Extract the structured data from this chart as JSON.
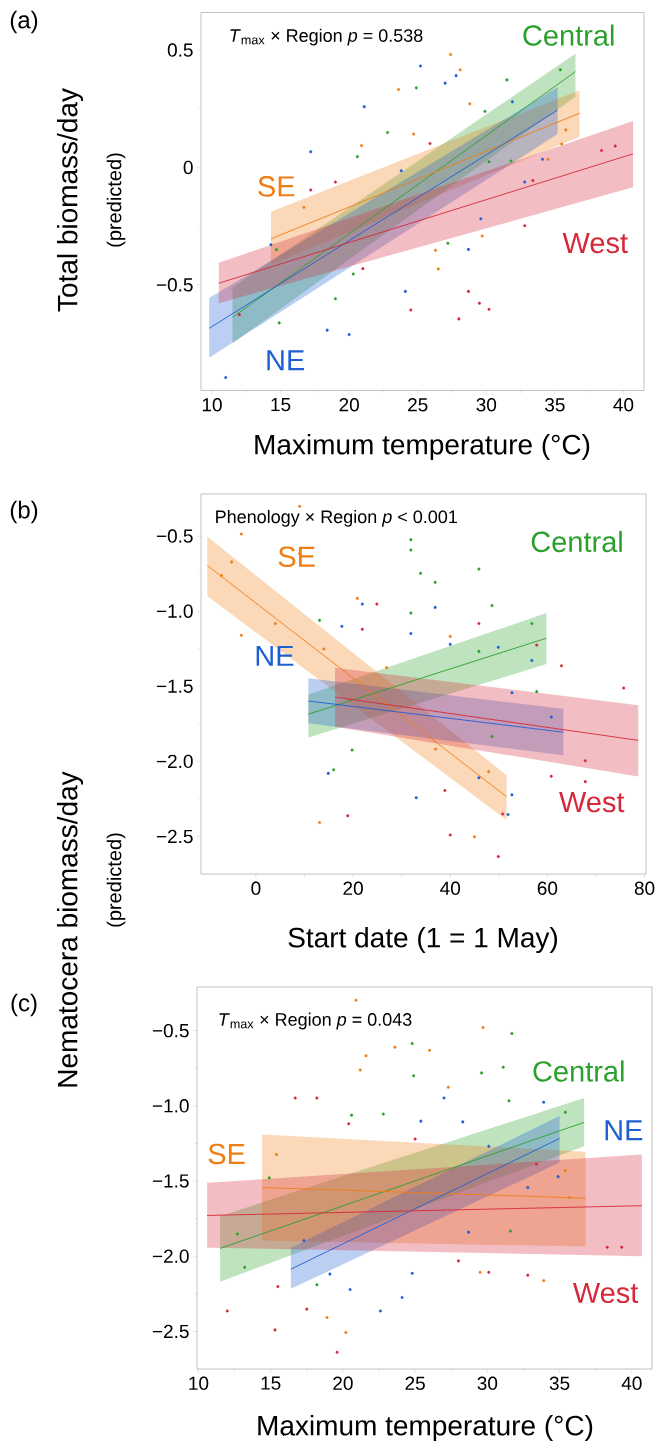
{
  "chart_data": [
    {
      "type": "scatter",
      "title": "(a)",
      "xlabel": "Maximum temperature (°C)",
      "ylabel": "Total biomass/day",
      "annotations": [
        "*T*$_{max}$ × Region *p* = 0.538",
        "(predicted)"
      ],
      "xlim": [
        9.2,
        41.5
      ],
      "ylim": [
        -0.95,
        0.66
      ],
      "xticks": [
        10,
        15,
        20,
        25,
        30,
        35,
        40
      ],
      "yticks": [
        {
          "value": -0.5,
          "label": "−0.5"
        },
        0,
        0.5
      ],
      "series": [
        {
          "type": "line",
          "name": "Central",
          "color": "#2ca02c",
          "x": [
            11.5,
            36.5
          ],
          "values": [
            -0.638,
            0.408
          ],
          "lower": [
            -0.749,
            0.301
          ],
          "upper": [
            -0.51,
            0.484
          ]
        },
        {
          "type": "line",
          "name": "SE",
          "color": "#f07d14",
          "x": [
            14.3,
            36.8
          ],
          "values": [
            -0.304,
            0.231
          ],
          "lower": [
            -0.414,
            0.131
          ],
          "upper": [
            -0.189,
            0.329
          ]
        },
        {
          "type": "line",
          "name": "NE",
          "color": "#1f5fd4",
          "x": [
            9.8,
            35.2
          ],
          "values": [
            -0.685,
            0.244
          ],
          "lower": [
            -0.81,
            0.142
          ],
          "upper": [
            -0.556,
            0.342
          ]
        },
        {
          "type": "line",
          "name": "West",
          "color": "#d62839",
          "x": [
            10.5,
            40.7
          ],
          "values": [
            -0.493,
            0.058
          ],
          "lower": [
            -0.578,
            -0.084
          ],
          "upper": [
            -0.406,
            0.198
          ]
        },
        {
          "color": "#2ca02c",
          "x": [
            35.4,
            14.9,
            24.9,
            20.6,
            31.5,
            29.9,
            19.0,
            20.3,
            27.2,
            31.8,
            30.2,
            22.8,
            14.7
          ],
          "values": [
            0.416,
            -0.662,
            0.339,
            0.046,
            0.373,
            0.239,
            -0.559,
            -0.454,
            -0.323,
            0.027,
            0.024,
            0.149,
            -0.35
          ]
        },
        {
          "color": "#f07d14",
          "x": [
            27.4,
            28.1,
            23.6,
            20.9,
            26.5,
            29.7,
            35.8,
            35.5,
            34.5,
            24.7,
            26.3,
            28.8,
            16.7
          ],
          "values": [
            0.481,
            0.416,
            0.332,
            0.093,
            -0.432,
            -0.292,
            0.16,
            0.1,
            0.035,
            0.142,
            -0.353,
            0.271,
            -0.17
          ]
        },
        {
          "color": "#1f5fd4",
          "x": [
            11.0,
            17.2,
            21.1,
            20.0,
            25.2,
            27.0,
            27.8,
            31.9,
            34.1,
            24.1,
            28.7,
            14.3,
            29.6,
            18.4,
            23.8,
            32.8
          ],
          "values": [
            -0.895,
            0.067,
            0.259,
            -0.712,
            0.432,
            0.359,
            0.391,
            0.28,
            0.035,
            -0.528,
            -0.349,
            -0.329,
            -0.219,
            -0.693,
            -0.014,
            -0.062
          ]
        },
        {
          "color": "#d62839",
          "x": [
            39.4,
            38.4,
            32.8,
            28.0,
            30.2,
            29.5,
            24.5,
            21.0,
            17.2,
            19.0,
            25.9,
            33.4,
            12.0,
            28.7
          ],
          "values": [
            0.091,
            0.072,
            -0.248,
            -0.645,
            -0.604,
            -0.578,
            -0.607,
            -0.431,
            -0.096,
            -0.062,
            0.102,
            -0.056,
            -0.627,
            -0.528
          ]
        }
      ]
    },
    {
      "type": "scatter",
      "title": "(b)",
      "xlabel": "Start date (1 = 1 May)",
      "ylabel": "Nematocera biomass/day",
      "annotations": [
        "Phenology × Region *p* < 0.001",
        "(predicted)"
      ],
      "xlim": [
        -11.3,
        80.3
      ],
      "ylim": [
        -2.75,
        -0.22
      ],
      "xticks": [
        0,
        20,
        40,
        60,
        80
      ],
      "yticks": [
        {
          "value": -2.5,
          "label": "−2.5"
        },
        {
          "value": -2,
          "label": "−2.0"
        },
        {
          "value": -1.5,
          "label": "−1.5"
        },
        {
          "value": -1,
          "label": "−1.0"
        },
        {
          "value": -0.5,
          "label": "−0.5"
        }
      ],
      "series": [
        {
          "type": "line",
          "name": "Central",
          "color": "#2ca02c",
          "x": [
            10.8,
            59.8
          ],
          "values": [
            -1.686,
            -1.18
          ],
          "lower": [
            -1.841,
            -1.352
          ],
          "upper": [
            -1.555,
            -1.013
          ]
        },
        {
          "type": "line",
          "name": "SE",
          "color": "#f07d14",
          "x": [
            -10,
            51.6
          ],
          "values": [
            -0.696,
            -2.235
          ],
          "lower": [
            -0.899,
            -2.39
          ],
          "upper": [
            -0.505,
            -2.092
          ]
        },
        {
          "type": "line",
          "name": "NE",
          "color": "#1f5fd4",
          "x": [
            10.8,
            63.3
          ],
          "values": [
            -1.598,
            -1.806
          ],
          "lower": [
            -1.746,
            -1.96
          ],
          "upper": [
            -1.447,
            -1.65
          ]
        },
        {
          "type": "line",
          "name": "West",
          "color": "#d62839",
          "x": [
            16.3,
            78.7
          ],
          "values": [
            -1.572,
            -1.86
          ],
          "lower": [
            -1.77,
            -2.1
          ],
          "upper": [
            -1.376,
            -1.626
          ]
        },
        {
          "color": "#2ca02c",
          "x": [
            31.9,
            31.9,
            33.9,
            45.9,
            36.9,
            48.6,
            56.8,
            57.8,
            19.8,
            16.0,
            13.1,
            48.6,
            45.9,
            31.9
          ],
          "values": [
            -0.524,
            -0.593,
            -0.748,
            -0.72,
            -0.808,
            -0.963,
            -1.082,
            -1.536,
            -1.925,
            -2.056,
            -1.061,
            -1.834,
            -1.268,
            -1.013
          ]
        },
        {
          "color": "#f07d14",
          "x": [
            9.0,
            -7.1,
            -3.0,
            -5.0,
            -3.0,
            9.0,
            4.0,
            13.1,
            45.0,
            26.9,
            20.9,
            40.0,
            37.0,
            14.0,
            47.9
          ],
          "values": [
            -0.302,
            -0.763,
            -0.486,
            -0.672,
            -1.161,
            -0.617,
            -1.082,
            -2.407,
            -2.502,
            -1.376,
            -0.915,
            -1.168,
            -1.918,
            -1.252,
            -2.068
          ]
        },
        {
          "color": "#1f5fd4",
          "x": [
            36.9,
            21.9,
            17.7,
            14.9,
            33.0,
            51.9,
            52.7,
            49.9,
            56.8,
            60.8,
            45.9,
            31.9,
            40.0,
            52.7
          ],
          "values": [
            -0.975,
            -0.953,
            -1.101,
            -2.08,
            -2.242,
            -2.354,
            -2.223,
            -1.24,
            -1.328,
            -1.705,
            -2.109,
            -1.149,
            -1.221,
            -1.543
          ]
        },
        {
          "color": "#d62839",
          "x": [
            75.7,
            67.8,
            40.0,
            49.9,
            18.9,
            45.9,
            57.8,
            62.9,
            60.8,
            21.9,
            38.9,
            24.9,
            50.8,
            67.8
          ],
          "values": [
            -1.512,
            -1.996,
            -2.49,
            -2.634,
            -2.362,
            -1.082,
            -1.226,
            -1.364,
            -2.099,
            -1.121,
            -2.194,
            -0.953,
            -2.35,
            -2.135
          ]
        }
      ]
    },
    {
      "type": "scatter",
      "title": "(c)",
      "xlabel": "Maximum temperature (°C)",
      "annotations": [
        "*T*$_{max}$ × Region *p* = 0.043"
      ],
      "xlim": [
        9.9,
        41.4
      ],
      "ylim": [
        -2.75,
        -0.21
      ],
      "xticks": [
        10,
        15,
        20,
        25,
        30,
        35,
        40
      ],
      "yticks": [
        {
          "value": -2.5,
          "label": "−2.5"
        },
        {
          "value": -2,
          "label": "−2.0"
        },
        {
          "value": -1.5,
          "label": "−1.5"
        },
        {
          "value": -1,
          "label": "−1.0"
        },
        {
          "value": -0.5,
          "label": "−0.5"
        }
      ],
      "series": [
        {
          "type": "line",
          "name": "Central",
          "color": "#2ca02c",
          "x": [
            11.5,
            36.7
          ],
          "values": [
            -1.948,
            -1.11
          ],
          "lower": [
            -2.169,
            -1.269
          ],
          "upper": [
            -1.733,
            -0.948
          ]
        },
        {
          "type": "line",
          "name": "SE",
          "color": "#f07d14",
          "x": [
            14.4,
            36.8
          ],
          "values": [
            -1.543,
            -1.614
          ],
          "lower": [
            -1.895,
            -1.936
          ],
          "upper": [
            -1.19,
            -1.305
          ]
        },
        {
          "type": "line",
          "name": "NE",
          "color": "#1f5fd4",
          "x": [
            16.4,
            35.0
          ],
          "values": [
            -2.086,
            -1.217
          ],
          "lower": [
            -2.217,
            -1.376
          ],
          "upper": [
            -1.943,
            -1.067
          ]
        },
        {
          "type": "line",
          "name": "West",
          "color": "#d62839",
          "x": [
            10.6,
            40.7
          ],
          "values": [
            -1.729,
            -1.664
          ],
          "lower": [
            -1.943,
            -2.0
          ],
          "upper": [
            -1.512,
            -1.324
          ]
        },
        {
          "color": "#2ca02c",
          "x": [
            24.8,
            31.7,
            31.1,
            29.6,
            24.9,
            35.4,
            12.7,
            13.2,
            14.9,
            18.2,
            31.6,
            22.8,
            20.6,
            31.5
          ],
          "values": [
            -0.586,
            -0.519,
            -0.743,
            -0.781,
            -0.8,
            -1.043,
            -1.852,
            -2.074,
            -1.479,
            -2.19,
            -1.833,
            -1.055,
            -1.062,
            -0.967
          ]
        },
        {
          "color": "#f07d14",
          "x": [
            20.9,
            23.6,
            26.0,
            21.6,
            21.2,
            29.7,
            27.3,
            15.4,
            35.4,
            33.9,
            20.2,
            18.9,
            29.5,
            35.7
          ],
          "values": [
            -0.298,
            -0.61,
            -0.631,
            -0.667,
            -0.762,
            -0.479,
            -0.876,
            -1.324,
            -1.431,
            -2.162,
            -2.507,
            -2.407,
            -2.107,
            -1.61
          ]
        },
        {
          "color": "#1f5fd4",
          "x": [
            33.9,
            27.0,
            22.6,
            24.1,
            20.5,
            34.9,
            32.8,
            17.3,
            25.4,
            28.3,
            30.1,
            28.7,
            24.8,
            19.1
          ],
          "values": [
            -0.976,
            -0.948,
            -2.364,
            -2.274,
            -2.221,
            -1.471,
            -1.543,
            -1.895,
            -1.102,
            -1.107,
            -1.269,
            -1.84,
            -2.114,
            -2.119
          ]
        },
        {
          "color": "#d62839",
          "x": [
            12.0,
            15.3,
            19.6,
            16.7,
            18.2,
            39.3,
            38.3,
            30.1,
            32.8,
            25.0,
            15.5,
            28.0,
            33.4,
            20.4,
            17.5
          ],
          "values": [
            -2.364,
            -2.49,
            -2.638,
            -0.948,
            -0.948,
            -1.94,
            -1.94,
            -2.107,
            -2.126,
            -1.221,
            -2.202,
            -2.031,
            -1.388,
            -1.119,
            -2.352
          ]
        }
      ]
    }
  ]
}
